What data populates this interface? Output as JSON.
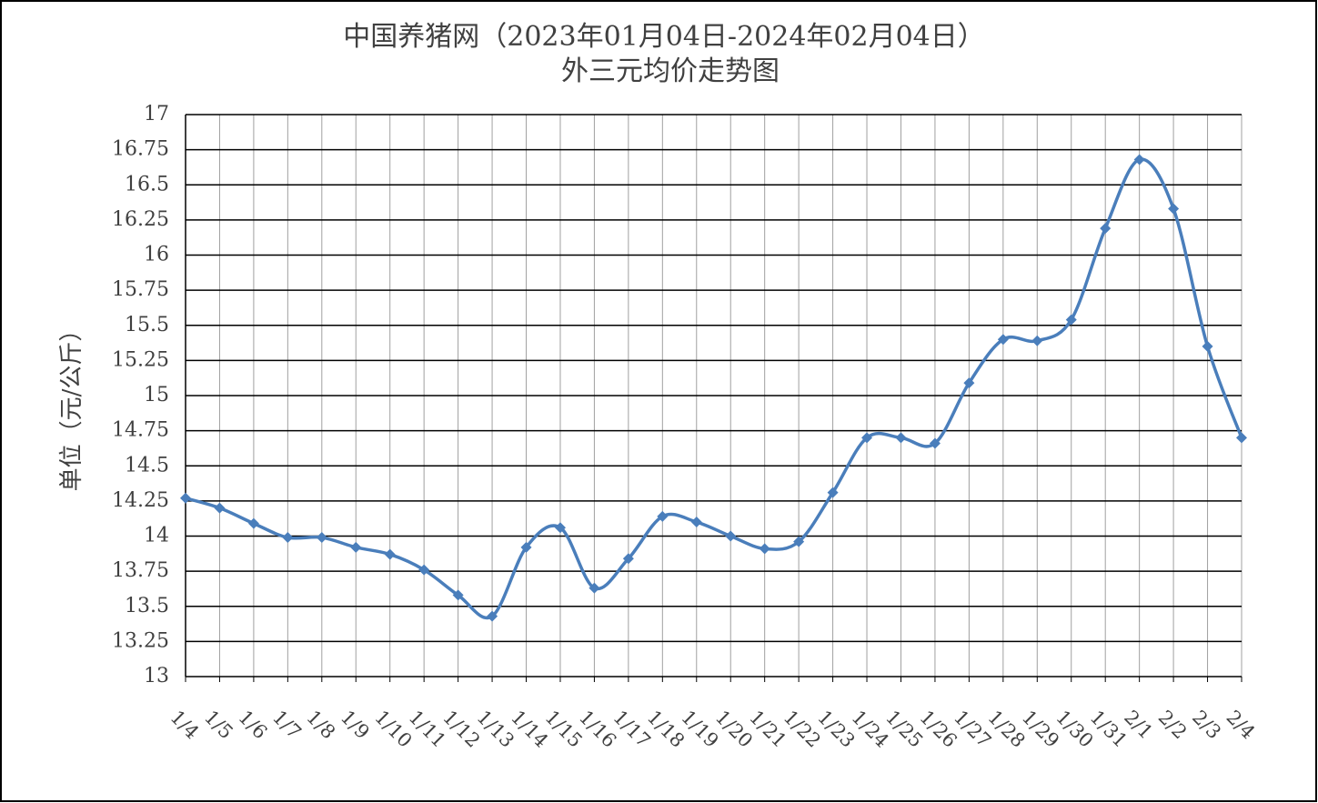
{
  "chart_data": {
    "type": "line",
    "title": "中国养猪网（2023年01月04日-2024年02月04日）",
    "subtitle": "外三元均价走势图",
    "y_label": "单位（元/公斤）",
    "categories": [
      "1/4",
      "1/5",
      "1/6",
      "1/7",
      "1/8",
      "1/9",
      "1/10",
      "1/11",
      "1/12",
      "1/13",
      "1/14",
      "1/15",
      "1/16",
      "1/17",
      "1/18",
      "1/19",
      "1/20",
      "1/21",
      "1/22",
      "1/23",
      "1/24",
      "1/25",
      "1/26",
      "1/27",
      "1/28",
      "1/29",
      "1/30",
      "1/31",
      "2/1",
      "2/2",
      "2/3",
      "2/4"
    ],
    "values": [
      14.27,
      14.2,
      14.09,
      13.99,
      13.99,
      13.92,
      13.87,
      13.76,
      13.58,
      13.43,
      13.92,
      14.06,
      13.63,
      13.84,
      14.14,
      14.1,
      14.0,
      13.91,
      13.96,
      14.31,
      14.7,
      14.7,
      14.66,
      15.09,
      15.4,
      15.39,
      15.54,
      16.19,
      16.68,
      16.33,
      15.35,
      14.7
    ],
    "color": "#4a7ebb",
    "ylim": [
      13,
      17
    ],
    "yticks": [
      13,
      13.25,
      13.5,
      13.75,
      14,
      14.25,
      14.5,
      14.75,
      15,
      15.25,
      15.5,
      15.75,
      16,
      16.25,
      16.5,
      16.75,
      17
    ],
    "grid": true
  }
}
